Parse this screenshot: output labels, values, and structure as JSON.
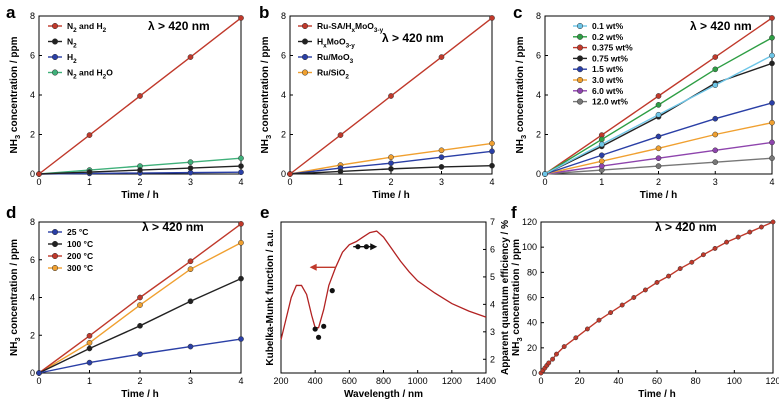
{
  "chart_data": [
    {
      "id": "a",
      "type": "line",
      "panel_label": "a",
      "annotation": "λ > 420 nm",
      "xlabel": "Time / h",
      "ylabel": "NH3 concentration / ppm",
      "xlim": [
        0,
        4
      ],
      "ylim": [
        0,
        8
      ],
      "xticks": [
        "0",
        "1",
        "2",
        "3",
        "4"
      ],
      "yticks": [
        "0",
        "2",
        "4",
        "6",
        "8"
      ],
      "x": [
        0,
        1,
        2,
        3,
        4
      ],
      "series": [
        {
          "name": "N2 and H2",
          "color": "#c0392b",
          "values": [
            0,
            1.97,
            3.95,
            5.92,
            7.9
          ]
        },
        {
          "name": "N2",
          "color": "#222222",
          "values": [
            0,
            0.1,
            0.2,
            0.3,
            0.4
          ]
        },
        {
          "name": "H2",
          "color": "#2a3fa6",
          "values": [
            0,
            0.03,
            0.05,
            0.07,
            0.09
          ]
        },
        {
          "name": "N2 and H2O",
          "color": "#3fb07a",
          "values": [
            0,
            0.2,
            0.4,
            0.6,
            0.8
          ]
        }
      ]
    },
    {
      "id": "b",
      "type": "line",
      "panel_label": "b",
      "annotation": "λ > 420 nm",
      "xlabel": "Time / h",
      "ylabel": "NH3 concentration / ppm",
      "xlim": [
        0,
        4
      ],
      "ylim": [
        0,
        8
      ],
      "xticks": [
        "0",
        "1",
        "2",
        "3",
        "4"
      ],
      "yticks": [
        "0",
        "2",
        "4",
        "6",
        "8"
      ],
      "x": [
        0,
        1,
        2,
        3,
        4
      ],
      "series": [
        {
          "name": "Ru-SA/HxMoO3-y",
          "color": "#c0392b",
          "values": [
            0,
            1.97,
            3.95,
            5.92,
            7.9
          ]
        },
        {
          "name": "HxMoO3-y",
          "color": "#222222",
          "values": [
            0,
            0.13,
            0.26,
            0.36,
            0.42
          ]
        },
        {
          "name": "Ru/MoO3",
          "color": "#2a3fa6",
          "values": [
            0,
            0.3,
            0.55,
            0.85,
            1.15
          ]
        },
        {
          "name": "Ru/SiO2",
          "color": "#f0a030",
          "values": [
            0,
            0.45,
            0.85,
            1.2,
            1.55
          ]
        }
      ]
    },
    {
      "id": "c",
      "type": "line",
      "panel_label": "c",
      "annotation": "λ > 420 nm",
      "xlabel": "Time / h",
      "ylabel": "NH3 concentration / ppm",
      "xlim": [
        0,
        4
      ],
      "ylim": [
        0,
        8
      ],
      "xticks": [
        "0",
        "1",
        "2",
        "3",
        "4"
      ],
      "yticks": [
        "0",
        "2",
        "4",
        "6",
        "8"
      ],
      "x": [
        0,
        1,
        2,
        3,
        4
      ],
      "series": [
        {
          "name": "0.1 wt%",
          "color": "#6ec6e8",
          "values": [
            0,
            1.5,
            3.0,
            4.5,
            6.0
          ]
        },
        {
          "name": "0.2 wt%",
          "color": "#2e9e44",
          "values": [
            0,
            1.75,
            3.5,
            5.3,
            6.9
          ]
        },
        {
          "name": "0.375 wt%",
          "color": "#c0392b",
          "values": [
            0,
            1.97,
            3.95,
            5.92,
            7.9
          ]
        },
        {
          "name": "0.75 wt%",
          "color": "#222222",
          "values": [
            0,
            1.4,
            2.9,
            4.6,
            5.6
          ]
        },
        {
          "name": "1.5 wt%",
          "color": "#2a3fa6",
          "values": [
            0,
            0.95,
            1.9,
            2.8,
            3.6
          ]
        },
        {
          "name": "3.0 wt%",
          "color": "#f0a030",
          "values": [
            0,
            0.65,
            1.3,
            2.0,
            2.6
          ]
        },
        {
          "name": "6.0 wt%",
          "color": "#8e44ad",
          "values": [
            0,
            0.4,
            0.8,
            1.2,
            1.6
          ]
        },
        {
          "name": "12.0 wt%",
          "color": "#777777",
          "values": [
            0,
            0.2,
            0.4,
            0.6,
            0.8
          ]
        }
      ]
    },
    {
      "id": "d",
      "type": "line",
      "panel_label": "d",
      "annotation": "λ > 420 nm",
      "xlabel": "Time / h",
      "ylabel": "NH3 concentration / ppm",
      "xlim": [
        0,
        4
      ],
      "ylim": [
        0,
        8
      ],
      "xticks": [
        "0",
        "1",
        "2",
        "3",
        "4"
      ],
      "yticks": [
        "0",
        "2",
        "4",
        "6",
        "8"
      ],
      "x": [
        0,
        1,
        2,
        3,
        4
      ],
      "series": [
        {
          "name": "25 °C",
          "color": "#2a3fa6",
          "values": [
            0,
            0.55,
            1.0,
            1.4,
            1.8
          ]
        },
        {
          "name": "100 °C",
          "color": "#222222",
          "values": [
            0,
            1.3,
            2.5,
            3.8,
            5.0
          ]
        },
        {
          "name": "200 °C",
          "color": "#c0392b",
          "values": [
            0,
            1.97,
            4.0,
            5.92,
            7.9
          ]
        },
        {
          "name": "300 °C",
          "color": "#f0a030",
          "values": [
            0,
            1.6,
            3.6,
            5.5,
            6.9
          ]
        }
      ]
    },
    {
      "id": "e",
      "type": "line",
      "panel_label": "e",
      "xlabel": "Wavelength / nm",
      "ylabel": "Kubelka-Munk function / a.u.",
      "y2label": "Apparent quantum efficiency / %",
      "xlim": [
        200,
        1400
      ],
      "xticks": [
        "200",
        "400",
        "600",
        "800",
        "1000",
        "1200",
        "1400"
      ],
      "y2lim": [
        1.5,
        7
      ],
      "y2ticks": [
        "2",
        "3",
        "4",
        "5",
        "6",
        "7"
      ],
      "curve_color": "#b22222",
      "km_curve": {
        "x": [
          200,
          230,
          260,
          290,
          320,
          350,
          380,
          400,
          420,
          450,
          480,
          520,
          560,
          600,
          640,
          680,
          720,
          760,
          800,
          850,
          900,
          950,
          1000,
          1100,
          1200,
          1300,
          1400
        ],
        "y": [
          0.22,
          0.36,
          0.5,
          0.58,
          0.58,
          0.52,
          0.38,
          0.3,
          0.3,
          0.42,
          0.58,
          0.7,
          0.8,
          0.85,
          0.87,
          0.9,
          0.93,
          0.94,
          0.9,
          0.82,
          0.74,
          0.67,
          0.61,
          0.53,
          0.46,
          0.41,
          0.37
        ]
      },
      "aqe_points": {
        "x": [
          400,
          420,
          450,
          500,
          650,
          700
        ],
        "y": [
          3.1,
          2.8,
          3.2,
          4.5,
          6.1,
          6.1
        ]
      },
      "arrow_left_x": 520,
      "arrow_right_x": 740
    },
    {
      "id": "f",
      "type": "line",
      "panel_label": "f",
      "annotation": "λ > 420 nm",
      "xlabel": "Time / h",
      "ylabel": "NH3 concentration / ppm",
      "xlim": [
        0,
        120
      ],
      "ylim": [
        0,
        120
      ],
      "xticks": [
        "0",
        "20",
        "40",
        "60",
        "80",
        "100",
        "120"
      ],
      "yticks": [
        "0",
        "20",
        "40",
        "60",
        "80",
        "100",
        "120"
      ],
      "series": [
        {
          "name": "Ru-SA/HxMoO3-y",
          "color": "#c0392b",
          "x": [
            0,
            1,
            2,
            3,
            4,
            6,
            8,
            12,
            18,
            24,
            30,
            36,
            42,
            48,
            54,
            60,
            66,
            72,
            78,
            84,
            90,
            96,
            102,
            108,
            114,
            120
          ],
          "values": [
            0,
            2,
            4,
            6,
            8,
            11,
            15,
            21,
            28,
            35,
            42,
            48,
            54,
            60,
            66,
            72,
            77,
            83,
            88,
            94,
            99,
            104,
            108,
            112,
            116,
            120
          ]
        }
      ]
    }
  ]
}
